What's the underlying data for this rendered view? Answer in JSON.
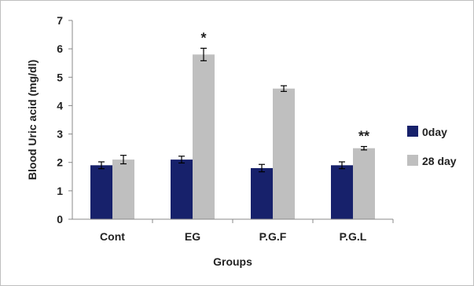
{
  "chart_data": {
    "type": "bar",
    "categories": [
      "Cont",
      "EG",
      "P.G.F",
      "P.G.L"
    ],
    "series": [
      {
        "name": "0day",
        "values": [
          1.9,
          2.1,
          1.8,
          1.9
        ],
        "errors": [
          0.12,
          0.12,
          0.13,
          0.12
        ],
        "color": "#17216B"
      },
      {
        "name": "28 day",
        "values": [
          2.1,
          5.8,
          4.6,
          2.5
        ],
        "errors": [
          0.15,
          0.22,
          0.1,
          0.06
        ],
        "color": "#BFBFBF"
      }
    ],
    "annotations": [
      "",
      "*",
      "",
      "**"
    ],
    "xlabel": "Groups",
    "ylabel": "Blood Uric acid (mg/dl)",
    "ylim": [
      0,
      7
    ],
    "yticks": [
      "0",
      "1",
      "2",
      "3",
      "4",
      "5",
      "6",
      "7"
    ],
    "grid": false,
    "legend_position": "right"
  }
}
